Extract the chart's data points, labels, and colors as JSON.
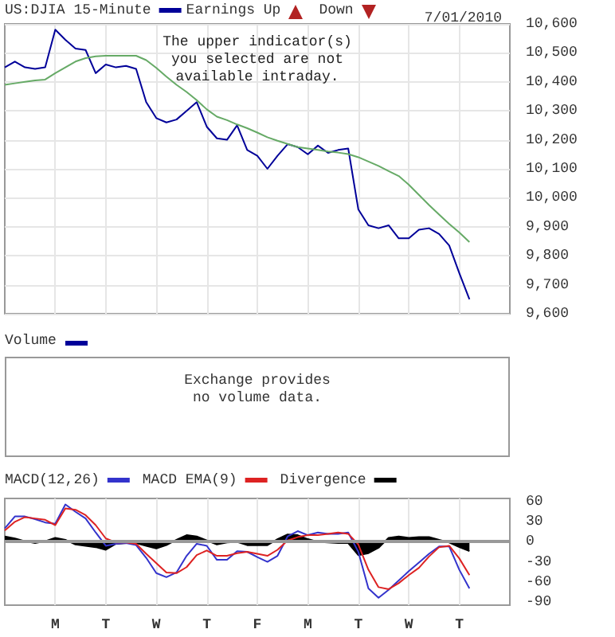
{
  "chart_data": [
    {
      "type": "line",
      "subtitle": "7/01/2010",
      "legend": "top left",
      "grid": true,
      "marker": "none",
      "line_style": "solid",
      "tick_labels": "y",
      "annotations": [
        "Earnings Up",
        "Down",
        "The upper indicator(s)\nyou selected are not\navailable intraday."
      ],
      "categories": [
        null,
        null,
        null,
        null,
        null,
        null,
        null,
        null,
        null,
        null,
        null,
        null,
        null,
        null,
        null,
        null,
        null,
        null,
        null,
        null,
        null,
        null,
        null,
        null,
        null,
        null,
        null,
        null,
        null,
        null,
        null,
        null,
        null,
        null,
        null,
        null,
        null,
        null,
        null,
        null,
        null,
        null,
        null,
        null,
        null,
        null,
        null,
        null,
        null,
        null,
        null
      ],
      "ylim": [
        9600,
        10600
      ],
      "yticks": [
        {
          "value": 9600,
          "label": "9,600"
        },
        {
          "value": 9700,
          "label": "9,700"
        },
        {
          "value": 9800,
          "label": "9,800"
        },
        {
          "value": 9900,
          "label": "9,900"
        },
        {
          "value": 10000,
          "label": "10,000"
        },
        {
          "value": 10100,
          "label": "10,100"
        },
        {
          "value": 10200,
          "label": "10,200"
        },
        {
          "value": 10300,
          "label": "10,300"
        },
        {
          "value": 10400,
          "label": "10,400"
        },
        {
          "value": 10500,
          "label": "10,500"
        },
        {
          "value": 10600,
          "label": "10,600"
        }
      ],
      "series": [
        {
          "name": "US:DJIA 15-Minute",
          "color": "#000099",
          "values": [
            10450,
            10470,
            10450,
            10445,
            10450,
            10580,
            10545,
            10515,
            10510,
            10430,
            10460,
            10450,
            10455,
            10445,
            10330,
            10275,
            10260,
            10270,
            10300,
            10330,
            10245,
            10205,
            10200,
            10250,
            10165,
            10145,
            10100,
            10145,
            10185,
            10175,
            10150,
            10180,
            10155,
            10165,
            10170,
            9960,
            9905,
            9895,
            9905,
            9860,
            9860,
            9890,
            9895,
            9875,
            9835,
            9740,
            9650,
            null,
            null,
            null,
            null
          ]
        },
        {
          "color": "#66aa66",
          "values": [
            10390,
            10395,
            10400,
            10405,
            10408,
            10430,
            10450,
            10470,
            10482,
            10488,
            10490,
            10490,
            10490,
            10490,
            10475,
            10448,
            10418,
            10390,
            10365,
            10337,
            10305,
            10280,
            10268,
            10253,
            10240,
            10225,
            10209,
            10197,
            10186,
            10175,
            10170,
            10165,
            10160,
            10156,
            10151,
            10140,
            10125,
            10110,
            10092,
            10075,
            10045,
            10010,
            9975,
            9942,
            9910,
            9880,
            9847,
            null,
            null,
            null,
            null
          ]
        }
      ]
    },
    {
      "type": "other",
      "title": "Volume",
      "annotations": [
        "Exchange provides\nno volume data."
      ]
    },
    {
      "type": "line",
      "legend": "top left",
      "grid": "x",
      "marker": "none",
      "line_style": "solid",
      "categories": [
        null,
        null,
        null,
        null,
        null,
        "M",
        null,
        null,
        null,
        null,
        "T",
        null,
        null,
        null,
        null,
        "W",
        null,
        null,
        null,
        null,
        "T",
        null,
        null,
        null,
        null,
        "F",
        null,
        null,
        null,
        null,
        "M",
        null,
        null,
        null,
        null,
        "T",
        null,
        null,
        null,
        null,
        "W",
        null,
        null,
        null,
        null,
        "T",
        null,
        null,
        null,
        null,
        null
      ],
      "ylim": [
        -95,
        65
      ],
      "yticks": [
        -90,
        -60,
        -30,
        0,
        30,
        60
      ],
      "ref_lines": [
        {
          "axis": "y",
          "value": 0,
          "color": "#999999"
        }
      ],
      "series": [
        {
          "name": "MACD(12,26)",
          "color": "#3333cc",
          "values": [
            20,
            38,
            38,
            34,
            29,
            27,
            56,
            45,
            35,
            14,
            -6,
            -3,
            -2,
            -5,
            -24,
            -47,
            -53,
            -46,
            -21,
            -3,
            -6,
            -27,
            -27,
            -14,
            -15,
            -23,
            -30,
            -21,
            8,
            16,
            10,
            14,
            12,
            12,
            14,
            -15,
            -70,
            -84,
            -72,
            -58,
            -44,
            -31,
            -18,
            -7,
            -7,
            -42,
            -70,
            null,
            null,
            null,
            null
          ]
        },
        {
          "name": "MACD EMA(9)",
          "color": "#dd2222",
          "values": [
            17,
            30,
            37,
            35,
            33,
            25,
            50,
            48,
            40,
            25,
            5,
            -1,
            -1,
            -3,
            -18,
            -32,
            -46,
            -47,
            -38,
            -20,
            -13,
            -21,
            -21,
            -17,
            -15,
            -18,
            -21,
            -12,
            2,
            7,
            10,
            10,
            12,
            14,
            12,
            -4,
            -42,
            -68,
            -71,
            -62,
            -50,
            -39,
            -22,
            -8,
            -6,
            -25,
            -50,
            null,
            null,
            null,
            null
          ]
        },
        {
          "name": "Divergence",
          "type": "area",
          "color": "#000000",
          "values": [
            8,
            5,
            1,
            -2,
            1,
            6,
            3,
            -4,
            -6,
            -8,
            -12,
            -3,
            -2,
            -2,
            -6,
            -10,
            -5,
            3,
            10,
            8,
            2,
            -4,
            -1,
            0,
            -5,
            -5,
            -5,
            4,
            11,
            10,
            4,
            0,
            -1,
            -2,
            -2,
            -20,
            -17,
            -9,
            6,
            8,
            6,
            7,
            7,
            3,
            -1,
            -8,
            -14,
            null,
            null,
            null,
            null
          ]
        }
      ]
    }
  ]
}
